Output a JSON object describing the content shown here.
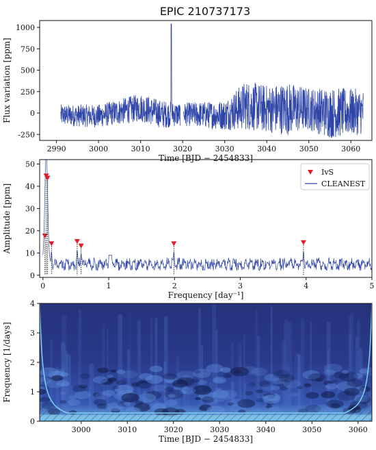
{
  "figure": {
    "title": "EPIC 210737173",
    "colors": {
      "series": "#2f45a8",
      "marker": "#e11d2a",
      "axis": "#111111",
      "wavelet_dark": "#1f2a6b",
      "wavelet_light": "#8fd3f0"
    }
  },
  "chart_data": [
    {
      "type": "line",
      "name": "light-curve",
      "xlabel": "Time [BJD − 2454833]",
      "ylabel": "Flux variation [ppm]",
      "xlim": [
        2986,
        3065
      ],
      "ylim": [
        -320,
        1080
      ],
      "xticks": [
        2990,
        3000,
        3010,
        3020,
        3030,
        3040,
        3050,
        3060
      ],
      "yticks": [
        -250,
        0,
        250,
        500,
        750,
        1000
      ],
      "time_range": [
        2991,
        3063
      ],
      "spike": {
        "x": 3017.3,
        "y": 1040
      },
      "envelope": [
        {
          "x": 2991,
          "low": -150,
          "high": 100
        },
        {
          "x": 3000,
          "low": -170,
          "high": 100
        },
        {
          "x": 3010,
          "low": -100,
          "high": 230
        },
        {
          "x": 3015,
          "low": -180,
          "high": 150
        },
        {
          "x": 3020,
          "low": -150,
          "high": 120
        },
        {
          "x": 3030,
          "low": -200,
          "high": 150
        },
        {
          "x": 3035,
          "low": -200,
          "high": 380
        },
        {
          "x": 3040,
          "low": -230,
          "high": 330
        },
        {
          "x": 3045,
          "low": -260,
          "high": 360
        },
        {
          "x": 3050,
          "low": -200,
          "high": 300
        },
        {
          "x": 3055,
          "low": -300,
          "high": 300
        },
        {
          "x": 3063,
          "low": -250,
          "high": 280
        }
      ],
      "grid": false
    },
    {
      "type": "line",
      "name": "periodogram",
      "xlabel": "Frequency [day⁻¹]",
      "ylabel": "Amplitude [ppm]",
      "xlim": [
        -0.05,
        5
      ],
      "ylim": [
        -1,
        52
      ],
      "xticks": [
        0,
        1,
        2,
        3,
        4,
        5
      ],
      "yticks": [
        0,
        10,
        20,
        30,
        40,
        50
      ],
      "series": [
        {
          "name": "CLEANEST",
          "style": "line",
          "peak": {
            "x": 0.05,
            "y": 50
          }
        },
        {
          "name": "IvS",
          "style": "triangle-marker",
          "points": [
            {
              "x": 0.03,
              "y": 17.5
            },
            {
              "x": 0.05,
              "y": 44.5
            },
            {
              "x": 0.07,
              "y": 43.5
            },
            {
              "x": 0.13,
              "y": 14
            },
            {
              "x": 0.52,
              "y": 15
            },
            {
              "x": 0.58,
              "y": 13
            },
            {
              "x": 1.99,
              "y": 14
            },
            {
              "x": 3.96,
              "y": 14.5
            }
          ]
        }
      ],
      "legend": {
        "placement": "top-right",
        "entries": [
          "IvS",
          "CLEANEST"
        ]
      },
      "grid": false
    },
    {
      "type": "heatmap",
      "name": "wavelet-scalogram",
      "xlabel": "Time [BJD − 2454833]",
      "ylabel": "Frequency [1/days]",
      "xlim": [
        2991,
        3063
      ],
      "ylim": [
        0,
        4
      ],
      "xticks": [
        3000,
        3010,
        3020,
        3030,
        3040,
        3050,
        3060
      ],
      "yticks": [
        0,
        1,
        2,
        3,
        4
      ],
      "colormap": "blue",
      "cone_of_influence": true,
      "grid": false
    }
  ]
}
